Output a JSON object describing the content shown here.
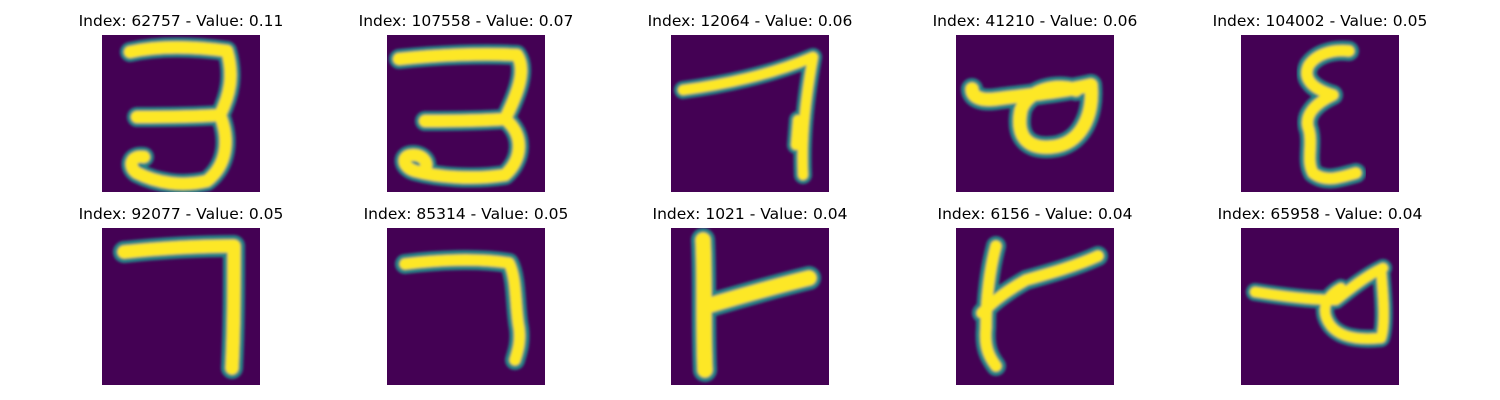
{
  "colormap": {
    "background": "#440154",
    "low": "#31688e",
    "mid": "#21918c",
    "high": "#35b779",
    "peak": "#fde725"
  },
  "samples": [
    {
      "title": "Index: 62757 - Value: 0.11",
      "depicts": "handwritten-glyph-three"
    },
    {
      "title": "Index: 107558 - Value: 0.07",
      "depicts": "handwritten-glyph-three"
    },
    {
      "title": "Index: 12064 - Value: 0.06",
      "depicts": "handwritten-glyph-seven"
    },
    {
      "title": "Index: 41210 - Value: 0.06",
      "depicts": "handwritten-glyph-loop"
    },
    {
      "title": "Index: 104002 - Value: 0.05",
      "depicts": "handwritten-glyph-epsilon"
    },
    {
      "title": "Index: 92077 - Value: 0.05",
      "depicts": "handwritten-glyph-seven"
    },
    {
      "title": "Index: 85314 - Value: 0.05",
      "depicts": "handwritten-glyph-seven"
    },
    {
      "title": "Index: 1021 - Value: 0.04",
      "depicts": "handwritten-glyph-t-shape"
    },
    {
      "title": "Index: 6156 - Value: 0.04",
      "depicts": "handwritten-glyph-t-shape"
    },
    {
      "title": "Index: 65958 - Value: 0.04",
      "depicts": "handwritten-glyph-loop"
    }
  ]
}
